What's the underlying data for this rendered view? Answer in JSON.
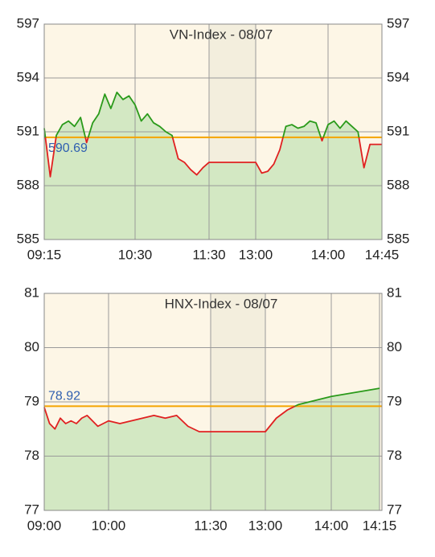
{
  "chart_data": [
    {
      "type": "line",
      "title": "VN-Index - 08/07",
      "x": [
        "09:15",
        "09:20",
        "09:25",
        "09:30",
        "09:35",
        "09:40",
        "09:45",
        "09:50",
        "09:55",
        "10:00",
        "10:05",
        "10:10",
        "10:15",
        "10:20",
        "10:25",
        "10:30",
        "10:35",
        "10:40",
        "10:45",
        "10:50",
        "10:55",
        "11:00",
        "11:05",
        "11:10",
        "11:15",
        "11:20",
        "11:25",
        "11:30",
        "13:00",
        "13:05",
        "13:10",
        "13:15",
        "13:20",
        "13:25",
        "13:30",
        "13:35",
        "13:40",
        "13:45",
        "13:50",
        "13:55",
        "14:00",
        "14:05",
        "14:10",
        "14:15",
        "14:20",
        "14:25",
        "14:30",
        "14:35",
        "14:40",
        "14:45"
      ],
      "values": [
        591.2,
        588.5,
        590.8,
        591.4,
        591.6,
        591.3,
        591.8,
        590.4,
        591.5,
        592.0,
        593.1,
        592.3,
        593.2,
        592.8,
        593.0,
        592.5,
        591.6,
        592.0,
        591.5,
        591.3,
        591.0,
        590.8,
        589.5,
        589.3,
        588.9,
        588.6,
        589.0,
        589.3,
        589.3,
        588.7,
        588.8,
        589.2,
        590.0,
        591.3,
        591.4,
        591.2,
        591.3,
        591.6,
        591.5,
        590.5,
        591.4,
        591.6,
        591.2,
        591.6,
        591.3,
        591.0,
        589.0,
        590.3,
        590.3,
        590.3
      ],
      "reference": 590.69,
      "up_color": "#2a9a1a",
      "down_color": "#e02020",
      "area_color": "#d3e8c3",
      "reference_color": "#f5a400",
      "background": "#fdf6e6",
      "break": [
        "11:30",
        "13:00"
      ],
      "break_color": "#f3eedd",
      "ylim": [
        585,
        597
      ],
      "yticks": [
        585,
        588,
        591,
        594,
        597
      ],
      "xticks": [
        "09:15",
        "10:30",
        "11:30",
        "13:00",
        "14:00",
        "14:45"
      ],
      "grid": true
    },
    {
      "type": "line",
      "title": "HNX-Index - 08/07",
      "x": [
        "09:00",
        "09:05",
        "09:10",
        "09:15",
        "09:20",
        "09:25",
        "09:30",
        "09:35",
        "09:40",
        "09:45",
        "09:50",
        "09:55",
        "10:00",
        "10:10",
        "10:20",
        "10:30",
        "10:40",
        "10:50",
        "11:00",
        "11:10",
        "11:20",
        "11:30",
        "13:00",
        "13:10",
        "13:20",
        "13:30",
        "13:40",
        "13:50",
        "14:00",
        "14:05",
        "14:10",
        "14:15"
      ],
      "values": [
        78.9,
        78.6,
        78.5,
        78.7,
        78.6,
        78.65,
        78.6,
        78.7,
        78.75,
        78.65,
        78.55,
        78.6,
        78.65,
        78.6,
        78.65,
        78.7,
        78.75,
        78.7,
        78.75,
        78.55,
        78.45,
        78.45,
        78.45,
        78.7,
        78.85,
        78.95,
        79.0,
        79.05,
        79.1,
        79.15,
        79.2,
        79.25
      ],
      "reference": 78.92,
      "up_color": "#2a9a1a",
      "down_color": "#e02020",
      "area_color": "#d3e8c3",
      "reference_color": "#f5a400",
      "background": "#fdf6e6",
      "break": [
        "11:30",
        "13:00"
      ],
      "break_color": "#f3eedd",
      "ylim": [
        77,
        81
      ],
      "yticks": [
        77,
        78,
        79,
        80,
        81
      ],
      "xticks": [
        "09:00",
        "10:00",
        "11:30",
        "13:00",
        "14:00",
        "14:15"
      ],
      "grid": true
    }
  ]
}
